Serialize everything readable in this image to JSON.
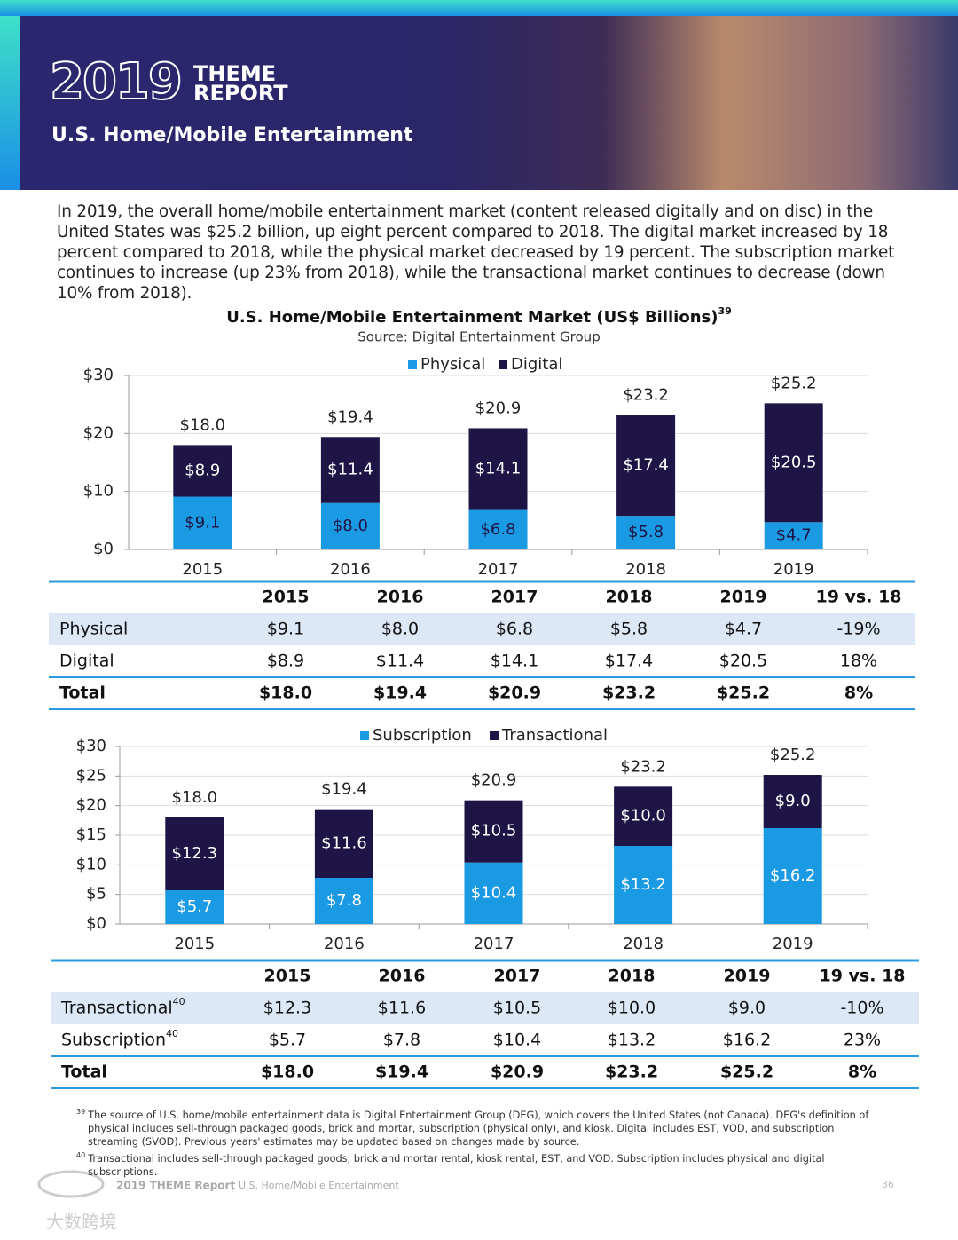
{
  "header": {
    "logo_year": "2019",
    "logo_line1": "THEME",
    "logo_line2": "REPORT",
    "title": "U.S. Home/Mobile Entertainment"
  },
  "intro": "In 2019, the overall home/mobile entertainment market (content released digitally and on disc) in the United States was $25.2 billion, up eight percent compared to 2018. The digital market increased by 18 percent compared to 2018, while the physical market decreased by 19 percent. The subscription market continues to increase (up 23% from 2018), while the transactional market continues to decrease (down 10% from 2018).",
  "chart_data": [
    {
      "type": "stacked_bar",
      "title": "U.S. Home/Mobile Entertainment Market (US$ Billions)",
      "title_note": "39",
      "subtitle": "Source: Digital Entertainment Group",
      "categories": [
        "2015",
        "2016",
        "2017",
        "2018",
        "2019"
      ],
      "series": [
        {
          "name": "Physical",
          "color": "#1b9ae4",
          "label_color": "#1e1446",
          "values": [
            9.1,
            8.0,
            6.8,
            5.8,
            4.7
          ],
          "value_labels": [
            "$9.1",
            "$8.0",
            "$6.8",
            "$5.8",
            "$4.7"
          ]
        },
        {
          "name": "Digital",
          "color": "#1e1446",
          "label_color": "#ffffff",
          "values": [
            8.9,
            11.4,
            14.1,
            17.4,
            20.5
          ],
          "value_labels": [
            "$8.9",
            "$11.4",
            "$14.1",
            "$17.4",
            "$20.5"
          ]
        }
      ],
      "totals": [
        18.0,
        19.4,
        20.9,
        23.2,
        25.2
      ],
      "total_labels": [
        "$18.0",
        "$19.4",
        "$20.9",
        "$23.2",
        "$25.2"
      ],
      "ylim": [
        0,
        30
      ],
      "yticks": [
        {
          "value": 0,
          "label": "$0"
        },
        {
          "value": 10,
          "label": "$10"
        },
        {
          "value": 20,
          "label": "$20"
        },
        {
          "value": 30,
          "label": "$30"
        }
      ],
      "grid": true
    },
    {
      "type": "stacked_bar",
      "categories": [
        "2015",
        "2016",
        "2017",
        "2018",
        "2019"
      ],
      "series": [
        {
          "name": "Subscription",
          "color": "#1b9ae4",
          "label_color": "#ffffff",
          "values": [
            5.7,
            7.8,
            10.4,
            13.2,
            16.2
          ],
          "value_labels": [
            "$5.7",
            "$7.8",
            "$10.4",
            "$13.2",
            "$16.2"
          ]
        },
        {
          "name": "Transactional",
          "color": "#1e1446",
          "label_color": "#ffffff",
          "values": [
            12.3,
            11.6,
            10.5,
            10.0,
            9.0
          ],
          "value_labels": [
            "$12.3",
            "$11.6",
            "$10.5",
            "$10.0",
            "$9.0"
          ]
        }
      ],
      "totals": [
        18.0,
        19.4,
        20.9,
        23.2,
        25.2
      ],
      "total_labels": [
        "$18.0",
        "$19.4",
        "$20.9",
        "$23.2",
        "$25.2"
      ],
      "ylim": [
        0,
        30
      ],
      "yticks": [
        {
          "value": 0,
          "label": "$0"
        },
        {
          "value": 5,
          "label": "$5"
        },
        {
          "value": 10,
          "label": "$10"
        },
        {
          "value": 15,
          "label": "$15"
        },
        {
          "value": 20,
          "label": "$20"
        },
        {
          "value": 25,
          "label": "$25"
        },
        {
          "value": 30,
          "label": "$30"
        }
      ],
      "grid": true
    }
  ],
  "tables": [
    {
      "columns": [
        "2015",
        "2016",
        "2017",
        "2018",
        "2019",
        "19 vs. 18"
      ],
      "rows": [
        {
          "label": "Physical",
          "cells": [
            "$9.1",
            "$8.0",
            "$6.8",
            "$5.8",
            "$4.7",
            "-19%"
          ]
        },
        {
          "label": "Digital",
          "cells": [
            "$8.9",
            "$11.4",
            "$14.1",
            "$17.4",
            "$20.5",
            "18%"
          ]
        },
        {
          "label": "Total",
          "cells": [
            "$18.0",
            "$19.4",
            "$20.9",
            "$23.2",
            "$25.2",
            "8%"
          ]
        }
      ]
    },
    {
      "columns": [
        "2015",
        "2016",
        "2017",
        "2018",
        "2019",
        "19 vs. 18"
      ],
      "rows": [
        {
          "label": "Transactional",
          "note": "40",
          "cells": [
            "$12.3",
            "$11.6",
            "$10.5",
            "$10.0",
            "$9.0",
            "-10%"
          ]
        },
        {
          "label": "Subscription",
          "note": "40",
          "cells": [
            "$5.7",
            "$7.8",
            "$10.4",
            "$13.2",
            "$16.2",
            "23%"
          ]
        },
        {
          "label": "Total",
          "cells": [
            "$18.0",
            "$19.4",
            "$20.9",
            "$23.2",
            "$25.2",
            "8%"
          ]
        }
      ]
    }
  ],
  "footnotes": [
    {
      "mark": "39",
      "text": "The source of U.S. home/mobile entertainment data is Digital Entertainment Group (DEG), which covers the United States (not Canada). DEG's definition of physical includes sell-through packaged goods, brick and mortar, subscription (physical only), and kiosk. Digital includes EST, VOD, and subscription streaming (SVOD). Previous years' estimates may be updated based on changes made by source."
    },
    {
      "mark": "40",
      "text": "Transactional includes sell-through packaged goods, brick and mortar rental, kiosk rental, EST, and VOD. Subscription includes physical and digital subscriptions."
    }
  ],
  "footer": {
    "report": "2019 THEME Report",
    "separator": "|",
    "section": "U.S. Home/Mobile Entertainment",
    "page": "36"
  },
  "watermark": "大数跨境"
}
